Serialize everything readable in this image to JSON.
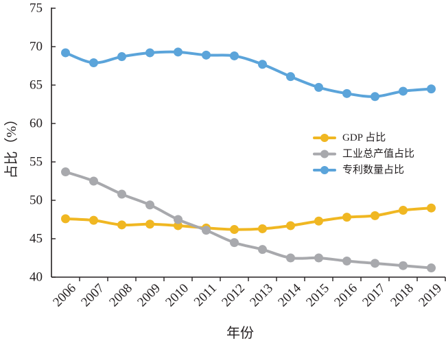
{
  "chart_data": {
    "type": "line",
    "categories": [
      "2006",
      "2007",
      "2008",
      "2009",
      "2010",
      "2011",
      "2012",
      "2013",
      "2014",
      "2015",
      "2016",
      "2017",
      "2018",
      "2019"
    ],
    "series": [
      {
        "name": "GDP 占比",
        "color": "#F0B722",
        "values": [
          47.6,
          47.4,
          46.8,
          46.9,
          46.7,
          46.4,
          46.2,
          46.3,
          46.7,
          47.3,
          47.8,
          48.0,
          48.7,
          49.0
        ]
      },
      {
        "name": "工业总产值占比",
        "color": "#A8A9AD",
        "values": [
          53.7,
          52.5,
          50.8,
          49.4,
          47.5,
          46.1,
          44.5,
          43.6,
          42.5,
          42.5,
          42.1,
          41.8,
          41.5,
          41.2
        ]
      },
      {
        "name": "专利数量占比",
        "color": "#5BA4DA",
        "values": [
          69.2,
          67.9,
          68.7,
          69.2,
          69.3,
          68.9,
          68.8,
          67.7,
          66.1,
          64.7,
          63.9,
          63.5,
          64.2,
          64.5
        ]
      }
    ],
    "xlabel": "年份",
    "ylabel": "占比（%）",
    "ylim": [
      40,
      75
    ],
    "yticks": [
      40,
      45,
      50,
      55,
      60,
      65,
      70,
      75
    ],
    "grid": false,
    "legend": "right",
    "smooth_lines": true,
    "markers": "circle"
  }
}
